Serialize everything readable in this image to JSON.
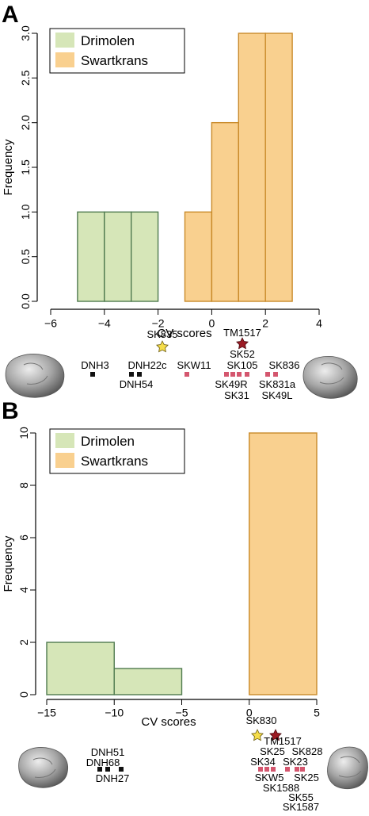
{
  "colors": {
    "drimolen_fill": "#d6e6b8",
    "drimolen_stroke": "#4f7a4f",
    "swartkrans_fill": "#f9d08f",
    "swartkrans_stroke": "#c98a2a",
    "drimolen_marker": "#111111",
    "swartkrans_marker": "#d4566e",
    "star_yellow": "#f5dd4a",
    "star_red": "#9b1b24"
  },
  "legend": {
    "drimolen": "Drimolen",
    "swartkrans": "Swartkrans"
  },
  "chart_data": [
    {
      "panel": "A",
      "type": "bar",
      "xlabel": "CV scores",
      "ylabel": "Frequency",
      "xlim": [
        -6,
        4
      ],
      "ylim": [
        0,
        3
      ],
      "xticks": [
        "−6",
        "−4",
        "−2",
        "0",
        "2",
        "4"
      ],
      "yticks": [
        "0.0",
        "0.5",
        "1.0",
        "1.5",
        "2.0",
        "2.5",
        "3.0"
      ],
      "legend_position": "top-left",
      "series": [
        {
          "name": "Drimolen",
          "bins": [
            [
              -5,
              -4,
              1
            ],
            [
              -4,
              -3,
              1
            ],
            [
              -3,
              -2,
              1
            ]
          ]
        },
        {
          "name": "Swartkrans",
          "bins": [
            [
              -1,
              0,
              1
            ],
            [
              0,
              1,
              2
            ],
            [
              1,
              2,
              3
            ],
            [
              2,
              3,
              3
            ]
          ]
        }
      ],
      "specimen_labels": [
        "SK835",
        "TM1517",
        "SK52",
        "DNH3",
        "DNH22c",
        "SKW11",
        "SK105",
        "SK836",
        "DNH54",
        "SK49R",
        "SK831a",
        "SK31",
        "SK49L"
      ]
    },
    {
      "panel": "B",
      "type": "bar",
      "xlabel": "CV scores",
      "ylabel": "Frequency",
      "xlim": [
        -15,
        5
      ],
      "ylim": [
        0,
        10
      ],
      "xticks": [
        "−15",
        "−10",
        "−5",
        "0",
        "5"
      ],
      "yticks": [
        "0",
        "2",
        "4",
        "6",
        "8",
        "10"
      ],
      "legend_position": "top-left",
      "series": [
        {
          "name": "Drimolen",
          "bins": [
            [
              -15,
              -10,
              2
            ],
            [
              -10,
              -5,
              1
            ]
          ]
        },
        {
          "name": "Swartkrans",
          "bins": [
            [
              0,
              5,
              10
            ]
          ]
        }
      ],
      "specimen_labels": [
        "SK830",
        "DNH51",
        "TM1517",
        "SK25",
        "SK828",
        "DNH68",
        "SK34",
        "SK23",
        "DNH27",
        "SKW5",
        "SK25",
        "SK1588",
        "SK55",
        "SK1587"
      ]
    }
  ]
}
